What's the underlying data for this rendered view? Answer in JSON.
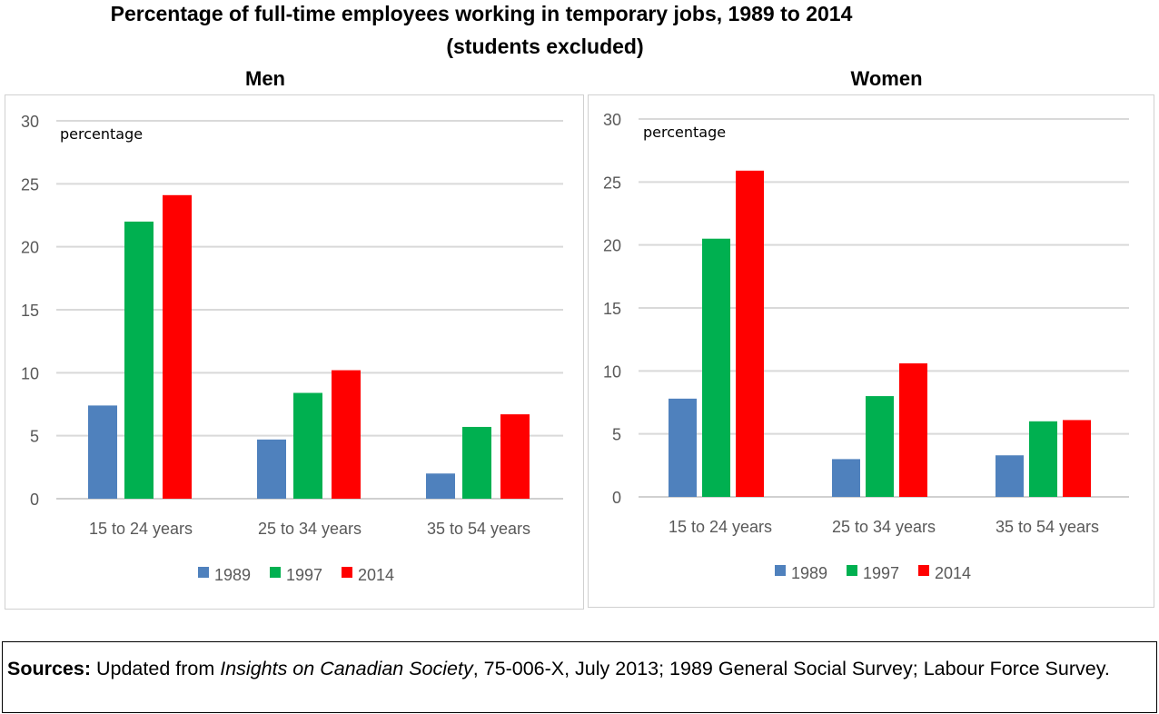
{
  "title": {
    "line1": "Percentage of full-time employees working in temporary jobs, 1989 to 2014",
    "line2": "(students excluded)"
  },
  "sources": {
    "label": "Sources:",
    "pre": " Updated from ",
    "italic": "Insights on Canadian Society",
    "post": ", 75-006-X, July 2013; 1989 General Social Survey; Labour Force Survey."
  },
  "colors": {
    "1989": "#4f81bd",
    "1997": "#00b050",
    "2014": "#ff0000"
  },
  "chart_data": [
    {
      "type": "bar",
      "title": "Men",
      "ylabel": "percentage",
      "ylim": [
        0,
        30
      ],
      "yticks": [
        0,
        5,
        10,
        15,
        20,
        25,
        30
      ],
      "grid": true,
      "legend": "bottom",
      "categories": [
        "15 to 24 years",
        "25 to 34 years",
        "35 to 54 years"
      ],
      "series": [
        {
          "name": "1989",
          "values": [
            7.4,
            4.7,
            2.0
          ]
        },
        {
          "name": "1997",
          "values": [
            22.0,
            8.4,
            5.7
          ]
        },
        {
          "name": "2014",
          "values": [
            24.1,
            10.2,
            6.7
          ]
        }
      ]
    },
    {
      "type": "bar",
      "title": "Women",
      "ylabel": "percentage",
      "ylim": [
        0,
        30
      ],
      "yticks": [
        0,
        5,
        10,
        15,
        20,
        25,
        30
      ],
      "grid": true,
      "legend": "bottom",
      "categories": [
        "15 to 24 years",
        "25 to 34 years",
        "35 to 54 years"
      ],
      "series": [
        {
          "name": "1989",
          "values": [
            7.8,
            3.0,
            3.3
          ]
        },
        {
          "name": "1997",
          "values": [
            20.5,
            8.0,
            6.0
          ]
        },
        {
          "name": "2014",
          "values": [
            25.9,
            10.6,
            6.1
          ]
        }
      ]
    }
  ]
}
